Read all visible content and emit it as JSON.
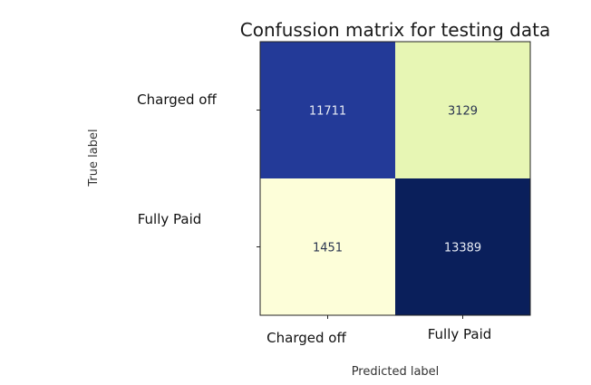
{
  "chart_data": {
    "type": "heatmap",
    "title": "Confussion matrix for testing data",
    "xlabel": "Predicted label",
    "ylabel": "True label",
    "x_categories": [
      "Charged off",
      "Fully Paid"
    ],
    "y_categories": [
      "Charged off",
      "Fully Paid"
    ],
    "values": [
      [
        11711,
        3129
      ],
      [
        1451,
        13389
      ]
    ],
    "colormap": "YlGnBu",
    "colors": {
      "cell_0_0": "#233a98",
      "cell_0_1": "#e7f6b4",
      "cell_1_0": "#fdfed9",
      "cell_1_1": "#0a1f5b",
      "text_light": "#e8ecf4",
      "text_dark": "#2a3550"
    },
    "grid": false,
    "legend": "none"
  }
}
